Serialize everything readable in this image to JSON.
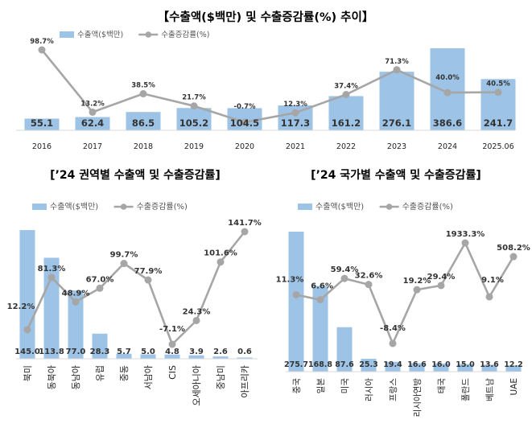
{
  "colors": {
    "bar": "#9dc3e6",
    "line": "#a6a6a6",
    "axis": "#d9d9d9"
  },
  "chart_data": [
    {
      "type": "bar",
      "title": "【수출액($백만) 및 수출증감률(%) 추이】",
      "legend": {
        "bar": "수출액($백만)",
        "line": "수출증감률(%)",
        "placement": "top-left"
      },
      "categories": [
        "2016",
        "2017",
        "2018",
        "2019",
        "2020",
        "2021",
        "2022",
        "2023",
        "2024",
        "2025.06"
      ],
      "series": [
        {
          "name": "수출액($백만)",
          "type": "bar",
          "values": [
            55.1,
            62.4,
            86.5,
            105.2,
            104.5,
            117.3,
            161.2,
            276.1,
            386.6,
            241.7
          ]
        },
        {
          "name": "수출증감률(%)",
          "type": "line",
          "values": [
            98.7,
            13.2,
            38.5,
            21.7,
            -0.7,
            12.3,
            37.4,
            71.3,
            40.0,
            40.5
          ]
        }
      ],
      "value_labels": [
        "55.1",
        "62.4",
        "86.5",
        "105.2",
        "104.5",
        "117.3",
        "161.2",
        "276.1",
        "386.6",
        "241.7"
      ],
      "rate_labels": [
        "98.7%",
        "13.2%",
        "38.5%",
        "21.7%",
        "-0.7%",
        "12.3%",
        "37.4%",
        "71.3%",
        "40.0%",
        "40.5%"
      ],
      "grid": false
    },
    {
      "type": "bar",
      "title": "[’24 권역별 수출액 및 수출증감률]",
      "legend": {
        "bar": "수출액($백만)",
        "line": "수출증감률(%)",
        "placement": "top-left"
      },
      "categories": [
        "북미",
        "동북아",
        "동남아",
        "유럽",
        "중동",
        "서남아",
        "CIS",
        "오세아니아",
        "중남미",
        "아프리카"
      ],
      "series": [
        {
          "name": "수출액($백만)",
          "type": "bar",
          "values": [
            145.0,
            113.8,
            77.0,
            28.3,
            5.7,
            5.0,
            4.8,
            3.9,
            2.6,
            0.6
          ]
        },
        {
          "name": "수출증감률(%)",
          "type": "line",
          "values": [
            12.2,
            81.3,
            48.9,
            67.0,
            99.7,
            77.9,
            -7.1,
            24.3,
            101.6,
            141.7
          ]
        }
      ],
      "value_labels": [
        "145.0",
        "113.8",
        "77.0",
        "28.3",
        "5.7",
        "5.0",
        "4.8",
        "3.9",
        "2.6",
        "0.6"
      ],
      "rate_labels": [
        "12.2%",
        "81.3%",
        "48.9%",
        "67.0%",
        "99.7%",
        "77.9%",
        "-7.1%",
        "24.3%",
        "101.6%",
        "141.7%"
      ],
      "grid": false
    },
    {
      "type": "bar",
      "title": "[’24 국가별 수출액 및 수출증감률]",
      "legend": {
        "bar": "수출액($백만)",
        "line": "수출증감률(%)",
        "placement": "top-left"
      },
      "categories": [
        "중국",
        "일본",
        "미국",
        "러시아",
        "프랑스",
        "리시아연방",
        "태국",
        "폴란드",
        "베트남",
        "UAE"
      ],
      "series": [
        {
          "name": "수출액($백만)",
          "type": "bar",
          "values": [
            275.7,
            168.8,
            87.6,
            25.3,
            19.4,
            16.6,
            16.0,
            15.0,
            13.6,
            12.2
          ]
        },
        {
          "name": "수출증감률(%)",
          "type": "line",
          "values": [
            11.3,
            6.6,
            59.4,
            32.6,
            -8.4,
            19.2,
            29.4,
            1933.3,
            9.1,
            508.2
          ]
        }
      ],
      "value_labels": [
        "275.7",
        "168.8",
        "87.6",
        "25.3",
        "19.4",
        "16.6",
        "16.0",
        "15.0",
        "13.6",
        "12.2"
      ],
      "rate_labels": [
        "11.3%",
        "6.6%",
        "59.4%",
        "32.6%",
        "-8.4%",
        "19.2%",
        "29.4%",
        "1933.3%",
        "9.1%",
        "508.2%"
      ],
      "grid": false
    }
  ]
}
